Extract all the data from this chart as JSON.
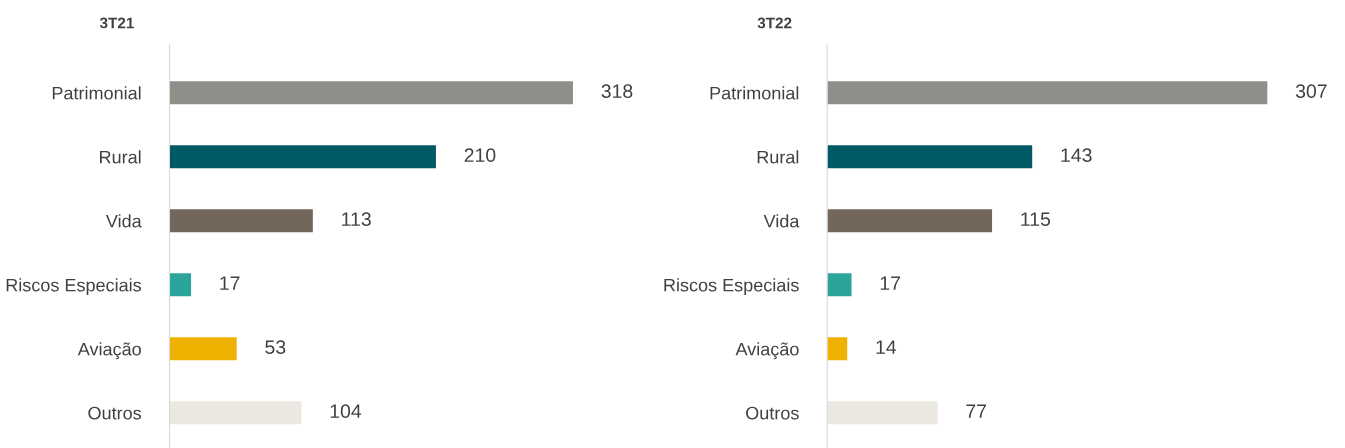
{
  "chart_data": [
    {
      "type": "bar",
      "orientation": "horizontal",
      "title": "3T21",
      "categories": [
        "Patrimonial",
        "Rural",
        "Vida",
        "Riscos Especiais",
        "Aviação",
        "Outros"
      ],
      "values": [
        318,
        210,
        113,
        17,
        53,
        104
      ],
      "colors": [
        "#8f8f89",
        "#005a66",
        "#72675a",
        "#2ba59a",
        "#f0b200",
        "#ebe7e1"
      ],
      "data_labels": true,
      "grid": false,
      "legend": false
    },
    {
      "type": "bar",
      "orientation": "horizontal",
      "title": "3T22",
      "categories": [
        "Patrimonial",
        "Rural",
        "Vida",
        "Riscos Especiais",
        "Aviação",
        "Outros"
      ],
      "values": [
        307,
        143,
        115,
        17,
        14,
        77
      ],
      "colors": [
        "#8f8f89",
        "#005a66",
        "#72675a",
        "#2ba59a",
        "#f0b200",
        "#ebe7e1"
      ],
      "data_labels": true,
      "grid": false,
      "legend": false
    }
  ]
}
